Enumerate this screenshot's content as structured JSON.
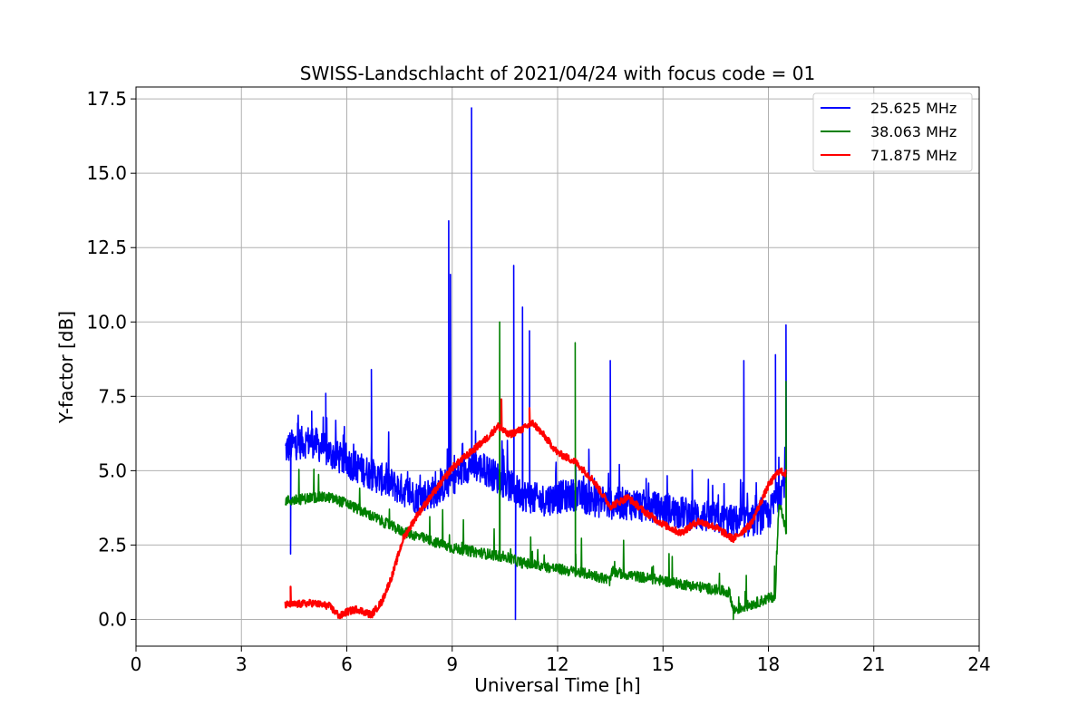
{
  "chart_data": {
    "type": "line",
    "title": "SWISS-Landschlacht of 2021/04/24 with focus code = 01",
    "xlabel": "Universal Time [h]",
    "ylabel": "Y-factor [dB]",
    "xlim": [
      0,
      24
    ],
    "ylim": [
      -0.9,
      17.9
    ],
    "xticks": [
      0,
      3,
      6,
      9,
      12,
      15,
      18,
      21,
      24
    ],
    "yticks": [
      0.0,
      2.5,
      5.0,
      7.5,
      10.0,
      12.5,
      15.0,
      17.5
    ],
    "xtick_labels": [
      "0",
      "3",
      "6",
      "9",
      "12",
      "15",
      "18",
      "21",
      "24"
    ],
    "ytick_labels": [
      "0.0",
      "2.5",
      "5.0",
      "7.5",
      "10.0",
      "12.5",
      "15.0",
      "17.5"
    ],
    "grid": true,
    "legend_position": "top-right",
    "series": [
      {
        "name": "25.625 MHz",
        "color": "#0000ff",
        "x": [
          4.25,
          4.5,
          5.0,
          5.5,
          6.0,
          6.5,
          7.0,
          7.5,
          8.0,
          8.5,
          9.0,
          9.5,
          10.0,
          10.5,
          11.0,
          11.5,
          12.0,
          12.5,
          13.0,
          13.5,
          14.0,
          14.5,
          15.0,
          15.5,
          16.0,
          16.5,
          17.0,
          17.5,
          18.0,
          18.3,
          18.5
        ],
        "y": [
          5.7,
          5.9,
          6.0,
          5.6,
          5.3,
          5.0,
          4.7,
          4.4,
          4.1,
          4.3,
          4.7,
          5.2,
          5.0,
          4.6,
          4.2,
          4.0,
          4.1,
          4.2,
          4.0,
          3.9,
          3.9,
          3.8,
          3.7,
          3.6,
          3.5,
          3.4,
          3.3,
          3.3,
          3.5,
          4.2,
          4.8
        ],
        "peaks": [
          [
            4.6,
            6.6
          ],
          [
            5.0,
            7.0
          ],
          [
            5.4,
            7.6
          ],
          [
            6.7,
            8.4
          ],
          [
            8.9,
            13.4
          ],
          [
            8.95,
            11.6
          ],
          [
            9.55,
            17.2
          ],
          [
            10.75,
            11.9
          ],
          [
            11.0,
            10.5
          ],
          [
            11.2,
            9.7
          ],
          [
            13.5,
            8.7
          ],
          [
            17.3,
            8.7
          ],
          [
            18.2,
            8.9
          ],
          [
            18.5,
            9.9
          ]
        ],
        "dips": [
          [
            4.4,
            2.2
          ],
          [
            10.8,
            0.0
          ]
        ]
      },
      {
        "name": "38.063 MHz",
        "color": "#008000",
        "x": [
          4.25,
          4.5,
          5.0,
          5.5,
          6.0,
          6.5,
          7.0,
          7.5,
          8.0,
          8.5,
          9.0,
          9.5,
          10.0,
          10.5,
          11.0,
          11.5,
          12.0,
          12.5,
          13.0,
          13.5,
          13.55,
          14.0,
          14.5,
          15.0,
          15.5,
          16.0,
          16.5,
          16.9,
          17.0,
          17.5,
          18.0,
          18.2,
          18.3,
          18.5
        ],
        "y": [
          4.0,
          4.0,
          4.1,
          4.1,
          3.9,
          3.6,
          3.3,
          3.0,
          2.8,
          2.6,
          2.4,
          2.3,
          2.2,
          2.1,
          1.9,
          1.8,
          1.7,
          1.6,
          1.5,
          1.3,
          1.6,
          1.5,
          1.4,
          1.3,
          1.2,
          1.1,
          1.0,
          0.9,
          0.3,
          0.5,
          0.7,
          0.8,
          4.0,
          3.0
        ],
        "peaks": [
          [
            10.35,
            10.0
          ],
          [
            12.5,
            9.3
          ],
          [
            18.5,
            8.0
          ]
        ],
        "dips": [
          [
            17.0,
            0.0
          ]
        ]
      },
      {
        "name": "71.875 MHz",
        "color": "#ff0000",
        "x": [
          4.25,
          4.5,
          5.0,
          5.5,
          5.8,
          6.0,
          6.3,
          6.7,
          7.0,
          7.3,
          7.6,
          8.0,
          8.5,
          9.0,
          9.5,
          10.0,
          10.3,
          10.6,
          11.0,
          11.3,
          11.6,
          12.0,
          12.5,
          13.0,
          13.5,
          14.0,
          14.5,
          15.0,
          15.5,
          16.0,
          16.5,
          17.0,
          17.5,
          18.0,
          18.3,
          18.5
        ],
        "y": [
          0.5,
          0.5,
          0.55,
          0.45,
          0.1,
          0.25,
          0.35,
          0.15,
          0.6,
          1.5,
          2.7,
          3.5,
          4.3,
          5.1,
          5.6,
          6.1,
          6.5,
          6.2,
          6.4,
          6.6,
          6.2,
          5.6,
          5.3,
          4.7,
          3.8,
          4.1,
          3.6,
          3.2,
          2.9,
          3.3,
          3.1,
          2.7,
          3.2,
          4.5,
          5.0,
          4.9
        ],
        "peaks": [
          [
            4.4,
            1.1
          ],
          [
            10.4,
            7.4
          ],
          [
            11.2,
            7.1
          ]
        ],
        "dips": []
      }
    ]
  }
}
